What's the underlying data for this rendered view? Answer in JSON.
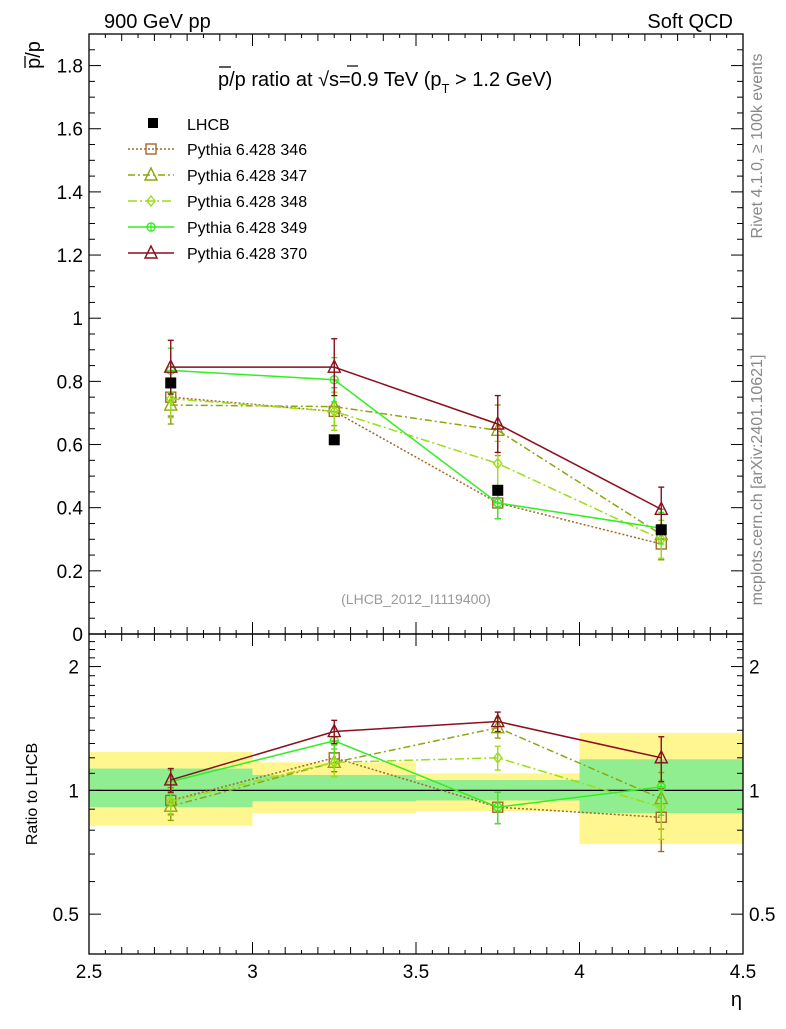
{
  "header": {
    "left": "900 GeV pp",
    "right": "Soft QCD"
  },
  "side": {
    "rivet": "Rivet 4.1.0, ≥ 100k events",
    "mcplots": "mcplots.cern.ch [arXiv:2401.10621]"
  },
  "colors": {
    "p346": "#a0692b",
    "p347": "#90a40e",
    "p348": "#9ade1a",
    "p349": "#33ee22",
    "p370": "#8b0f1f",
    "band1": "#fff68f",
    "band2": "#90ee90"
  },
  "chart_data": {
    "type": "line",
    "title": "p̄/p ratio at √s=0.9 TeV (pT > 1.2 GeV)",
    "title_parts": {
      "pbar": "p",
      "mid": "/p ratio at ",
      "sqrt": "√",
      "s": "s",
      "rest": "=0.9 TeV (p",
      "sub": "T",
      "tail": " > 1.2 GeV)"
    },
    "ylabel": {
      "bar": "p",
      "rest": "/p"
    },
    "xlabel": "η",
    "analysis_id": "(LHCB_2012_I1119400)",
    "xlim": [
      2.5,
      4.5
    ],
    "ylim": [
      0,
      1.9
    ],
    "x_ticks": [
      {
        "v": 2.5,
        "label": "2.5"
      },
      {
        "v": 3,
        "label": "3"
      },
      {
        "v": 3.5,
        "label": "3.5"
      },
      {
        "v": 4,
        "label": "4"
      },
      {
        "v": 4.5,
        "label": "4.5"
      }
    ],
    "y_ticks": [
      {
        "v": 0,
        "label": "0"
      },
      {
        "v": 0.2,
        "label": "0.2"
      },
      {
        "v": 0.4,
        "label": "0.4"
      },
      {
        "v": 0.6,
        "label": "0.6"
      },
      {
        "v": 0.8,
        "label": "0.8"
      },
      {
        "v": 1,
        "label": "1"
      },
      {
        "v": 1.2,
        "label": "1.2"
      },
      {
        "v": 1.4,
        "label": "1.4"
      },
      {
        "v": 1.6,
        "label": "1.6"
      },
      {
        "v": 1.8,
        "label": "1.8"
      }
    ],
    "x": [
      2.75,
      3.25,
      3.75,
      4.25
    ],
    "bins": [
      [
        2.5,
        3.0
      ],
      [
        3.0,
        3.5
      ],
      [
        3.5,
        4.0
      ],
      [
        4.0,
        4.5
      ]
    ],
    "data": {
      "name": "LHCB",
      "values": [
        0.795,
        0.615,
        0.455,
        0.33
      ]
    },
    "series": [
      {
        "name": "Pythia 6.428 346",
        "color_key": "p346",
        "dash": "2,2",
        "marker": "square",
        "values": [
          0.75,
          0.705,
          0.415,
          0.285
        ],
        "errors": [
          0.06,
          0.06,
          0.05,
          0.05
        ]
      },
      {
        "name": "Pythia 6.428 347",
        "color_key": "p347",
        "dash": "7,3,2,3",
        "marker": "triangle",
        "values": [
          0.725,
          0.72,
          0.645,
          0.315
        ],
        "errors": [
          0.06,
          0.06,
          0.08,
          0.08
        ]
      },
      {
        "name": "Pythia 6.428 348",
        "color_key": "p348",
        "dash": "9,3,2,3",
        "marker": "diamond",
        "values": [
          0.745,
          0.705,
          0.54,
          0.3
        ],
        "errors": [
          0.06,
          0.06,
          0.07,
          0.06
        ]
      },
      {
        "name": "Pythia 6.428 349",
        "color_key": "p349",
        "dash": "",
        "marker": "circle",
        "values": [
          0.835,
          0.805,
          0.415,
          0.335
        ],
        "errors": [
          0.07,
          0.07,
          0.05,
          0.05
        ]
      },
      {
        "name": "Pythia 6.428 370",
        "color_key": "p370",
        "dash": "",
        "marker": "triangle",
        "values": [
          0.845,
          0.845,
          0.665,
          0.395
        ],
        "errors": [
          0.085,
          0.09,
          0.09,
          0.07
        ]
      }
    ],
    "ratio": {
      "ylabel": "Ratio to LHCB",
      "ylim": [
        0.4,
        2.4
      ],
      "y_ticks": [
        {
          "v": 0.5,
          "label": "0.5"
        },
        {
          "v": 1,
          "label": "1"
        },
        {
          "v": 2,
          "label": "2"
        }
      ],
      "yellow_band": [
        [
          0.82,
          1.24
        ],
        [
          0.88,
          1.17
        ],
        [
          0.89,
          1.1
        ],
        [
          0.74,
          1.38
        ]
      ],
      "green_band": [
        [
          0.91,
          1.13
        ],
        [
          0.94,
          1.09
        ],
        [
          0.945,
          1.06
        ],
        [
          0.88,
          1.19
        ]
      ],
      "series_values": [
        [
          0.945,
          1.2,
          0.91,
          0.86
        ],
        [
          0.915,
          1.17,
          1.42,
          0.955
        ],
        [
          0.94,
          1.17,
          1.2,
          0.91
        ],
        [
          1.05,
          1.32,
          0.91,
          1.02
        ],
        [
          1.06,
          1.39,
          1.47,
          1.2
        ]
      ],
      "series_errors": [
        0.07,
        0.09,
        0.08,
        0.15
      ]
    }
  }
}
